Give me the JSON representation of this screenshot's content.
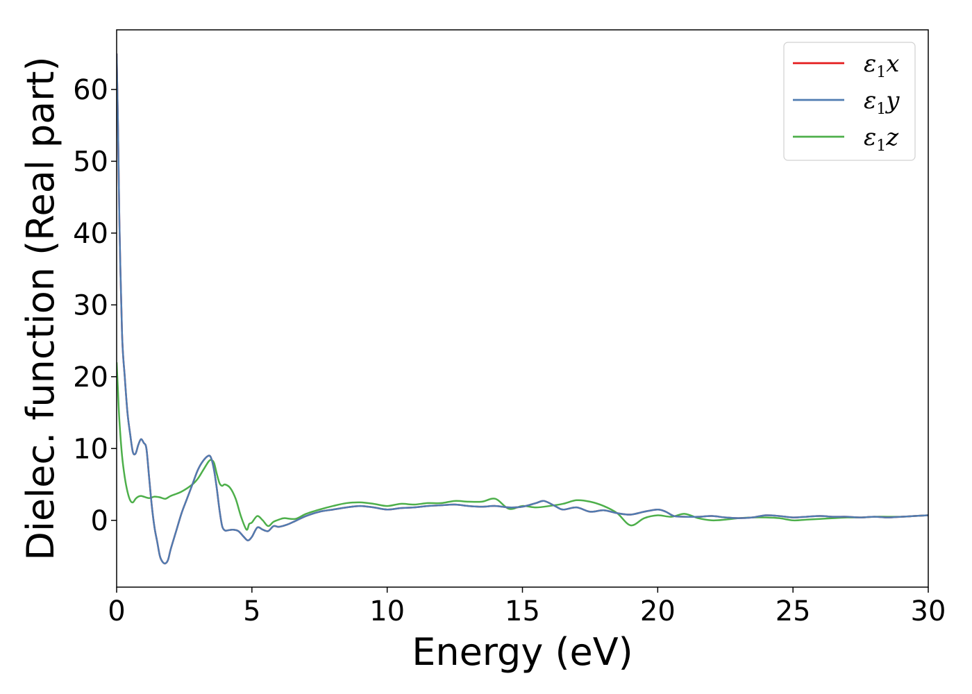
{
  "chart_data": {
    "type": "line",
    "xlabel": "Energy (eV)",
    "ylabel": "Dielec. function (Real part)",
    "xlim": [
      0,
      30
    ],
    "ylim": [
      -9.3,
      68.3
    ],
    "xticks": [
      0,
      5,
      10,
      15,
      20,
      25,
      30
    ],
    "yticks": [
      0,
      10,
      20,
      30,
      40,
      50,
      60
    ],
    "grid": false,
    "legend_position": "top-right",
    "series": [
      {
        "name": "ε₁x",
        "legend_base": "ε",
        "legend_sub": "1",
        "legend_suffix": "x",
        "color": "#e41a1c",
        "x": [
          0.0,
          0.05,
          0.1,
          0.2,
          0.3,
          0.4,
          0.5,
          0.6,
          0.7,
          0.8,
          0.9,
          1.0,
          1.1,
          1.2,
          1.3,
          1.4,
          1.5,
          1.6,
          1.7,
          1.8,
          1.9,
          2.0,
          2.2,
          2.4,
          2.6,
          2.8,
          3.0,
          3.2,
          3.4,
          3.5,
          3.6,
          3.7,
          3.8,
          3.9,
          4.0,
          4.1,
          4.3,
          4.5,
          4.7,
          4.85,
          5.0,
          5.2,
          5.4,
          5.6,
          5.8,
          6.0,
          6.3,
          6.6,
          7.0,
          7.5,
          8.0,
          8.5,
          9.0,
          9.5,
          10.0,
          10.5,
          11.0,
          11.5,
          12.0,
          12.5,
          13.0,
          13.5,
          14.0,
          14.5,
          15.0,
          15.5,
          15.8,
          16.2,
          16.5,
          17.0,
          17.5,
          18.0,
          18.5,
          19.0,
          19.5,
          20.0,
          20.3,
          20.6,
          21.0,
          21.5,
          22.0,
          22.5,
          23.0,
          23.5,
          24.0,
          24.5,
          25.0,
          25.5,
          26.0,
          26.5,
          27.0,
          27.5,
          28.0,
          28.5,
          29.0,
          29.5,
          30.0
        ],
        "y": [
          65.0,
          55.0,
          42.0,
          26.0,
          20.0,
          15.0,
          12.0,
          9.5,
          9.3,
          10.5,
          11.3,
          10.8,
          10.0,
          6.0,
          2.0,
          -1.0,
          -3.0,
          -5.0,
          -5.8,
          -6.0,
          -5.5,
          -4.0,
          -1.5,
          1.0,
          3.0,
          5.0,
          7.0,
          8.3,
          9.0,
          8.6,
          7.0,
          4.5,
          1.5,
          -0.8,
          -1.4,
          -1.4,
          -1.3,
          -1.5,
          -2.3,
          -2.8,
          -2.3,
          -1.0,
          -1.3,
          -1.5,
          -0.8,
          -0.9,
          -0.6,
          -0.1,
          0.6,
          1.2,
          1.5,
          1.8,
          2.0,
          1.8,
          1.5,
          1.7,
          1.8,
          2.0,
          2.1,
          2.2,
          2.0,
          1.9,
          2.0,
          1.8,
          1.9,
          2.4,
          2.7,
          2.0,
          1.5,
          1.8,
          1.2,
          1.4,
          1.0,
          0.8,
          1.2,
          1.5,
          1.2,
          0.6,
          0.5,
          0.5,
          0.6,
          0.4,
          0.3,
          0.4,
          0.7,
          0.6,
          0.4,
          0.5,
          0.6,
          0.5,
          0.5,
          0.4,
          0.5,
          0.4,
          0.5,
          0.6,
          0.7
        ]
      },
      {
        "name": "ε₁y",
        "legend_base": "ε",
        "legend_sub": "1",
        "legend_suffix": "y",
        "color": "#4f7cb1",
        "x": [
          0.0,
          0.05,
          0.1,
          0.2,
          0.3,
          0.4,
          0.5,
          0.6,
          0.7,
          0.8,
          0.9,
          1.0,
          1.1,
          1.2,
          1.3,
          1.4,
          1.5,
          1.6,
          1.7,
          1.8,
          1.9,
          2.0,
          2.2,
          2.4,
          2.6,
          2.8,
          3.0,
          3.2,
          3.4,
          3.5,
          3.6,
          3.7,
          3.8,
          3.9,
          4.0,
          4.1,
          4.3,
          4.5,
          4.7,
          4.85,
          5.0,
          5.2,
          5.4,
          5.6,
          5.8,
          6.0,
          6.3,
          6.6,
          7.0,
          7.5,
          8.0,
          8.5,
          9.0,
          9.5,
          10.0,
          10.5,
          11.0,
          11.5,
          12.0,
          12.5,
          13.0,
          13.5,
          14.0,
          14.5,
          15.0,
          15.5,
          15.8,
          16.2,
          16.5,
          17.0,
          17.5,
          18.0,
          18.5,
          19.0,
          19.5,
          20.0,
          20.3,
          20.6,
          21.0,
          21.5,
          22.0,
          22.5,
          23.0,
          23.5,
          24.0,
          24.5,
          25.0,
          25.5,
          26.0,
          26.5,
          27.0,
          27.5,
          28.0,
          28.5,
          29.0,
          29.5,
          30.0
        ],
        "y": [
          65.0,
          55.0,
          42.0,
          26.0,
          20.0,
          15.0,
          12.0,
          9.5,
          9.3,
          10.5,
          11.3,
          10.8,
          10.0,
          6.0,
          2.0,
          -1.0,
          -3.0,
          -5.0,
          -5.8,
          -6.0,
          -5.5,
          -4.0,
          -1.5,
          1.0,
          3.0,
          5.0,
          7.0,
          8.3,
          9.0,
          8.6,
          7.0,
          4.5,
          1.5,
          -0.8,
          -1.4,
          -1.4,
          -1.3,
          -1.5,
          -2.3,
          -2.8,
          -2.3,
          -1.0,
          -1.3,
          -1.5,
          -0.8,
          -0.9,
          -0.6,
          -0.1,
          0.6,
          1.2,
          1.5,
          1.8,
          2.0,
          1.8,
          1.5,
          1.7,
          1.8,
          2.0,
          2.1,
          2.2,
          2.0,
          1.9,
          2.0,
          1.8,
          1.9,
          2.4,
          2.7,
          2.0,
          1.5,
          1.8,
          1.2,
          1.4,
          1.0,
          0.8,
          1.2,
          1.5,
          1.2,
          0.6,
          0.5,
          0.5,
          0.6,
          0.4,
          0.3,
          0.4,
          0.7,
          0.6,
          0.4,
          0.5,
          0.6,
          0.5,
          0.5,
          0.4,
          0.5,
          0.4,
          0.5,
          0.6,
          0.7
        ]
      },
      {
        "name": "ε₁z",
        "legend_base": "ε",
        "legend_sub": "1",
        "legend_suffix": "z",
        "color": "#4daf4a",
        "x": [
          0.0,
          0.05,
          0.1,
          0.2,
          0.3,
          0.4,
          0.5,
          0.6,
          0.7,
          0.8,
          0.9,
          1.0,
          1.2,
          1.4,
          1.6,
          1.8,
          2.0,
          2.4,
          2.8,
          3.0,
          3.2,
          3.4,
          3.5,
          3.6,
          3.7,
          3.8,
          3.9,
          4.0,
          4.2,
          4.4,
          4.6,
          4.8,
          4.9,
          5.0,
          5.2,
          5.4,
          5.6,
          5.8,
          6.0,
          6.2,
          6.6,
          7.0,
          7.5,
          8.0,
          8.5,
          9.0,
          9.5,
          10.0,
          10.5,
          11.0,
          11.5,
          12.0,
          12.5,
          13.0,
          13.5,
          14.0,
          14.5,
          15.0,
          15.5,
          16.0,
          16.5,
          17.0,
          17.5,
          18.0,
          18.5,
          19.0,
          19.5,
          20.0,
          20.5,
          21.0,
          21.5,
          22.0,
          22.5,
          23.0,
          23.5,
          24.0,
          24.5,
          25.0,
          25.5,
          26.0,
          26.5,
          27.0,
          27.5,
          28.0,
          28.5,
          29.0,
          29.5,
          30.0
        ],
        "y": [
          22.0,
          18.0,
          14.0,
          9.0,
          6.0,
          4.0,
          2.8,
          2.5,
          3.0,
          3.3,
          3.4,
          3.3,
          3.1,
          3.3,
          3.2,
          3.0,
          3.4,
          4.0,
          5.0,
          5.8,
          7.0,
          8.2,
          8.4,
          8.0,
          6.5,
          5.2,
          4.8,
          5.0,
          4.5,
          3.0,
          0.5,
          -1.3,
          -0.5,
          -0.3,
          0.6,
          0.0,
          -0.8,
          -0.2,
          0.1,
          0.3,
          0.2,
          0.9,
          1.5,
          2.0,
          2.4,
          2.5,
          2.3,
          2.0,
          2.3,
          2.2,
          2.4,
          2.4,
          2.7,
          2.6,
          2.6,
          3.0,
          1.6,
          2.0,
          1.8,
          2.0,
          2.3,
          2.8,
          2.6,
          2.0,
          1.0,
          -0.7,
          0.3,
          0.7,
          0.5,
          0.9,
          0.3,
          0.0,
          0.1,
          0.3,
          0.4,
          0.4,
          0.3,
          0.0,
          0.1,
          0.2,
          0.3,
          0.4,
          0.4,
          0.5,
          0.5,
          0.5,
          0.6,
          0.7
        ]
      }
    ]
  }
}
